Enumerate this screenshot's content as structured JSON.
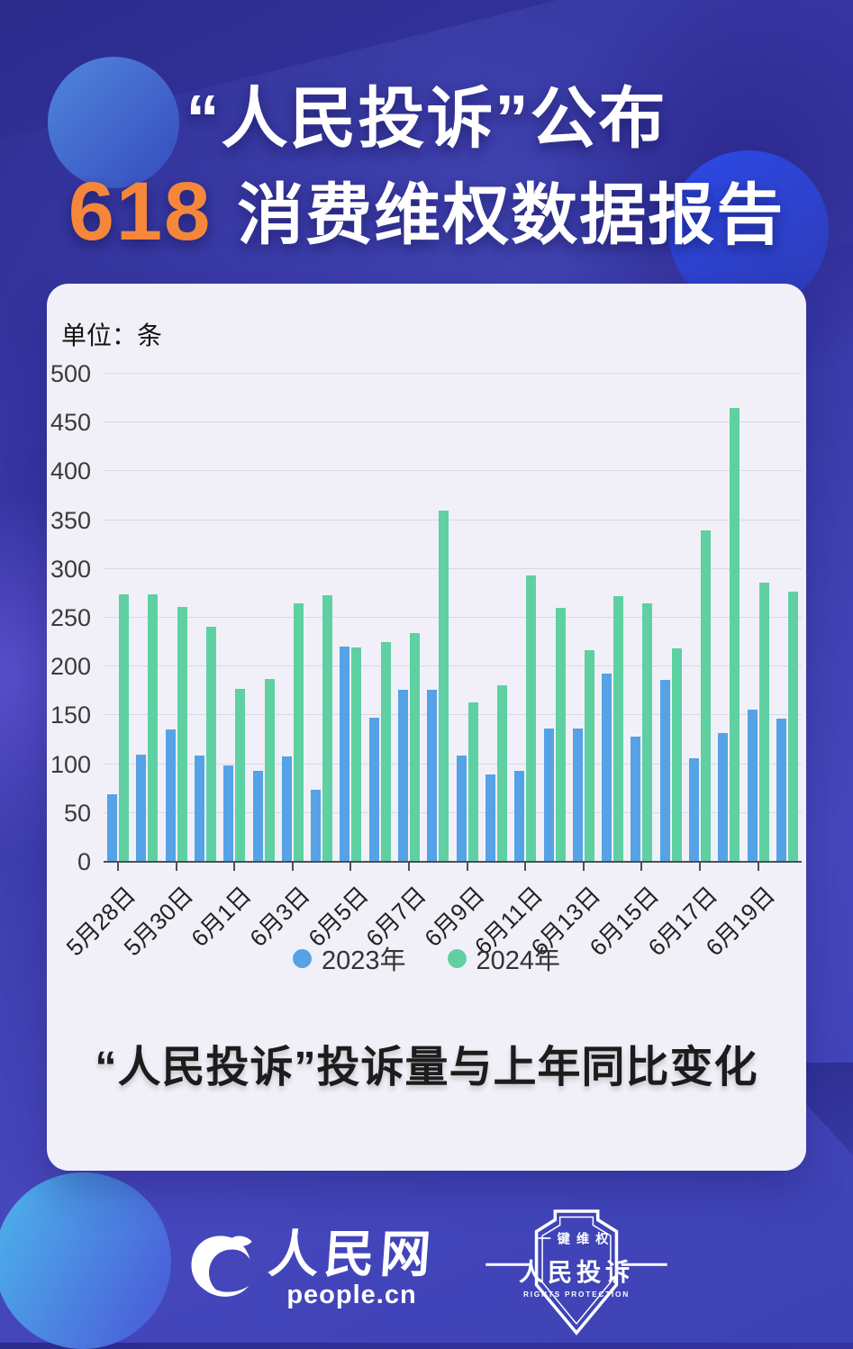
{
  "title": {
    "line1": "“人民投诉”公布",
    "highlight": "618",
    "line2_rest": "消费维权数据报告"
  },
  "colors": {
    "accent_orange": "#F6873A",
    "bar_2023": "#55A2E7",
    "bar_2024": "#5FD0A2",
    "card_background": "#F1F0F8"
  },
  "card": {
    "unit_label": "单位：条",
    "caption": "“人民投诉”投诉量与上年同比变化"
  },
  "footer": {
    "people_logo": {
      "icon": "people-cn-swirl-icon",
      "name": "人民网",
      "domain": "people.cn"
    },
    "badge": {
      "icon": "rights-protection-shield-icon",
      "top_label": "一键维权",
      "name": "人民投诉",
      "bottom_label": "RIGHTS PROTECTION"
    }
  },
  "chart_data": {
    "type": "bar",
    "title": "单位：条",
    "categories": [
      "5月28日",
      "5月29日",
      "5月30日",
      "5月31日",
      "6月1日",
      "6月2日",
      "6月3日",
      "6月4日",
      "6月5日",
      "6月6日",
      "6月7日",
      "6月8日",
      "6月9日",
      "6月10日",
      "6月11日",
      "6月12日",
      "6月13日",
      "6月14日",
      "6月15日",
      "6月16日",
      "6月17日",
      "6月18日",
      "6月19日",
      "6月20日"
    ],
    "x_tick_labels": [
      "5月28日",
      "5月30日",
      "6月1日",
      "6月3日",
      "6月5日",
      "6月7日",
      "6月9日",
      "6月11日",
      "6月13日",
      "6月15日",
      "6月17日",
      "6月19日"
    ],
    "series": [
      {
        "name": "2023年",
        "color": "#55A2E7",
        "values": [
          68,
          109,
          135,
          108,
          98,
          92,
          107,
          73,
          220,
          147,
          175,
          175,
          108,
          89,
          92,
          136,
          136,
          192,
          127,
          185,
          105,
          131,
          155,
          146
        ]
      },
      {
        "name": "2024年",
        "color": "#5FD0A2",
        "values": [
          273,
          273,
          260,
          240,
          176,
          186,
          264,
          272,
          219,
          224,
          233,
          359,
          162,
          180,
          292,
          259,
          216,
          271,
          264,
          218,
          339,
          464,
          285,
          276
        ]
      }
    ],
    "ylim": [
      0,
      500
    ],
    "yticks": [
      0,
      50,
      100,
      150,
      200,
      250,
      300,
      350,
      400,
      450,
      500
    ],
    "grid": true,
    "legend_position": "bottom"
  }
}
